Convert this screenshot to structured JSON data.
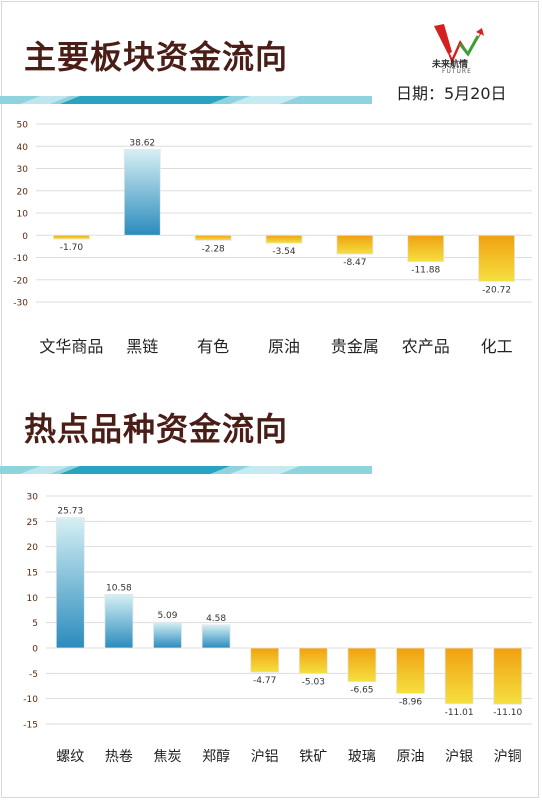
{
  "header": {
    "title_1": "主要板块资金流向",
    "title_2": "热点品种资金流向",
    "date": "日期：5月20日",
    "logo_text": "未来航情",
    "logo_sub": "FUTURE"
  },
  "colors": {
    "title": "#4a1d16",
    "positive_top": "#d6f0f4",
    "positive_bottom": "#2a8bbd",
    "negative_top": "#f0a010",
    "negative_bottom": "#f5e040",
    "axis_text": "#5a2a10",
    "grid": "#dddddd"
  },
  "chart_data": [
    {
      "type": "bar",
      "categories": [
        "文华商品",
        "黑链",
        "有色",
        "原油",
        "贵金属",
        "农产品",
        "化工"
      ],
      "values": [
        -1.7,
        38.62,
        -2.28,
        -3.54,
        -8.47,
        -11.88,
        -20.72
      ],
      "value_labels": [
        "-1.70",
        "38.62",
        "-2.28",
        "-3.54",
        "-8.47",
        "-11.88",
        "-20.72"
      ],
      "yticks": [
        50,
        40,
        30,
        20,
        10,
        0,
        -10,
        -20,
        -30
      ],
      "ylim": [
        -30,
        50
      ],
      "grid": true
    },
    {
      "type": "bar",
      "categories": [
        "螺纹",
        "热卷",
        "焦炭",
        "郑醇",
        "沪铝",
        "铁矿",
        "玻璃",
        "原油",
        "沪银",
        "沪铜"
      ],
      "values": [
        25.73,
        10.58,
        5.09,
        4.58,
        -4.77,
        -5.03,
        -6.65,
        -8.96,
        -11.01,
        -11.1
      ],
      "value_labels": [
        "25.73",
        "10.58",
        "5.09",
        "4.58",
        "-4.77",
        "-5.03",
        "-6.65",
        "-8.96",
        "-11.01",
        "-11.10"
      ],
      "yticks": [
        30,
        25,
        20,
        15,
        10,
        5,
        0,
        -5,
        -10,
        -15
      ],
      "ylim": [
        -15,
        30
      ],
      "grid": true
    }
  ]
}
